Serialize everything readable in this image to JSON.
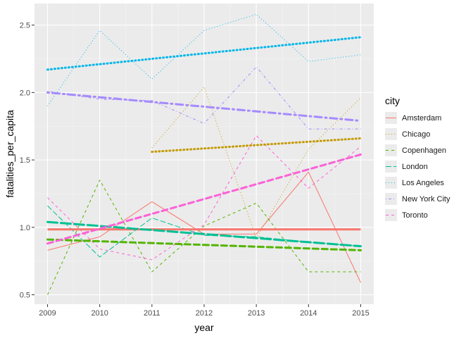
{
  "chart_data": {
    "type": "line",
    "xlabel": "year",
    "ylabel": "fatalities_per_capita",
    "xlim": [
      2008.75,
      2015.25
    ],
    "ylim": [
      0.43,
      2.66
    ],
    "x_ticks": [
      2009,
      2010,
      2011,
      2012,
      2013,
      2014,
      2015
    ],
    "y_ticks": [
      0.5,
      1.0,
      1.5,
      2.0,
      2.5
    ],
    "x_tick_labels": [
      "2009",
      "2010",
      "2011",
      "2012",
      "2013",
      "2014",
      "2015"
    ],
    "y_tick_labels": [
      "0.5",
      "1.0",
      "1.5",
      "2.0",
      "2.5"
    ],
    "grid": true,
    "background": "#ebebeb",
    "legend": {
      "title": "city",
      "position": "right"
    },
    "series": [
      {
        "name": "Amsterdam",
        "color": "#F8766D",
        "linetype": "solid",
        "x": [
          2009,
          2010,
          2011,
          2012,
          2013,
          2014,
          2015
        ],
        "values": [
          0.83,
          0.93,
          1.19,
          0.95,
          0.95,
          1.41,
          0.59
        ],
        "trend": [
          0.985,
          0.985
        ]
      },
      {
        "name": "Chicago",
        "color": "#C49A00",
        "linetype": "dotted",
        "x": [
          2011,
          2012,
          2013,
          2014,
          2015
        ],
        "values": [
          1.59,
          2.04,
          0.92,
          1.58,
          1.96
        ],
        "trend": [
          1.56,
          1.66
        ]
      },
      {
        "name": "Copenhagen",
        "color": "#53B400",
        "linetype": "dashed",
        "x": [
          2009,
          2010,
          2011,
          2012,
          2013,
          2014,
          2015
        ],
        "values": [
          0.5,
          1.35,
          0.67,
          1.01,
          1.18,
          0.67,
          0.67
        ],
        "trend": [
          0.91,
          0.83
        ]
      },
      {
        "name": "London",
        "color": "#00C094",
        "linetype": "longdash",
        "x": [
          2009,
          2010,
          2011,
          2012,
          2013,
          2014,
          2015
        ],
        "values": [
          1.16,
          0.78,
          1.07,
          0.94,
          0.93,
          0.89,
          0.86
        ],
        "trend": [
          1.04,
          0.86
        ]
      },
      {
        "name": "Los Angeles",
        "color": "#00B6EB",
        "linetype": "dotted",
        "x": [
          2009,
          2010,
          2011,
          2012,
          2013,
          2014,
          2015
        ],
        "values": [
          1.9,
          2.46,
          2.1,
          2.46,
          2.58,
          2.23,
          2.28
        ],
        "trend": [
          2.17,
          2.41
        ]
      },
      {
        "name": "New York City",
        "color": "#A58AFF",
        "linetype": "dotdash",
        "x": [
          2009,
          2010,
          2011,
          2012,
          2013,
          2014,
          2015
        ],
        "values": [
          2.01,
          1.95,
          1.94,
          1.77,
          2.19,
          1.73,
          1.73
        ],
        "trend": [
          2.0,
          1.79
        ]
      },
      {
        "name": "Toronto",
        "color": "#FB61D7",
        "linetype": "dashed",
        "x": [
          2009,
          2010,
          2011,
          2012,
          2013,
          2014,
          2015
        ],
        "values": [
          1.22,
          0.84,
          0.76,
          1.02,
          1.68,
          1.29,
          1.6
        ],
        "trend": [
          0.88,
          1.54
        ]
      }
    ]
  }
}
